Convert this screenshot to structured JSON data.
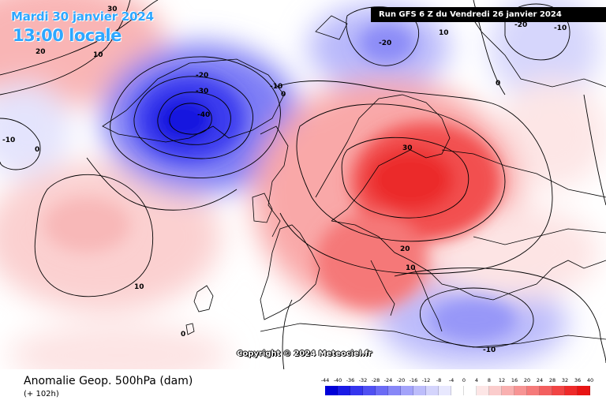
{
  "header": {
    "date_title": "Mardi 30 janvier 2024",
    "time_title": "13:00 locale",
    "run_info": "Run GFS 6 Z du Vendredi 26 janvier 2024"
  },
  "map": {
    "copyright": "Copyright © 2024 Meteociel.fr",
    "contour_labels": [
      {
        "text": "30",
        "key": "nw-30"
      },
      {
        "text": "20",
        "key": "nw-20"
      },
      {
        "text": "10",
        "key": "nw-10"
      },
      {
        "text": "-20",
        "key": "low-20"
      },
      {
        "text": "-30",
        "key": "low-30"
      },
      {
        "text": "-40",
        "key": "low-40"
      },
      {
        "text": "-10",
        "key": "low-10"
      },
      {
        "text": "0",
        "key": "low-0"
      },
      {
        "text": "-20",
        "key": "north-20"
      },
      {
        "text": "10",
        "key": "north-10"
      },
      {
        "text": "-20",
        "key": "ne-20"
      },
      {
        "text": "-10",
        "key": "ne-10"
      },
      {
        "text": "-10",
        "key": "west-10"
      },
      {
        "text": "0",
        "key": "west-0"
      },
      {
        "text": "30",
        "key": "high-30"
      },
      {
        "text": "20",
        "key": "europe-20"
      },
      {
        "text": "10",
        "key": "europe-10"
      },
      {
        "text": "10",
        "key": "atlantic-10"
      },
      {
        "text": "0",
        "key": "atlantic-0"
      },
      {
        "text": "-10",
        "key": "med-10"
      },
      {
        "text": "0",
        "key": "east-0"
      }
    ]
  },
  "footer": {
    "variable_title": "Anomalie Geop. 500hPa (dam)",
    "lead_time": "(+ 102h)"
  },
  "colorscale": {
    "ticks": [
      "-44",
      "-40",
      "-36",
      "-32",
      "-28",
      "-24",
      "-20",
      "-16",
      "-12",
      "-8",
      "-4",
      "0",
      "4",
      "8",
      "12",
      "16",
      "20",
      "24",
      "28",
      "32",
      "36",
      "40"
    ],
    "colors": [
      "#0000d8",
      "#1a1ae6",
      "#3535ee",
      "#5050f2",
      "#6b6bf5",
      "#8787f7",
      "#a3a3fa",
      "#bdbdfb",
      "#d4d4fc",
      "#e8e8fe",
      "#ffffff",
      "#ffffff",
      "#fde6e6",
      "#fbcccc",
      "#f9b0b0",
      "#f79494",
      "#f57a7a",
      "#f35f5f",
      "#f14444",
      "#ee2a2a",
      "#e81414"
    ]
  }
}
